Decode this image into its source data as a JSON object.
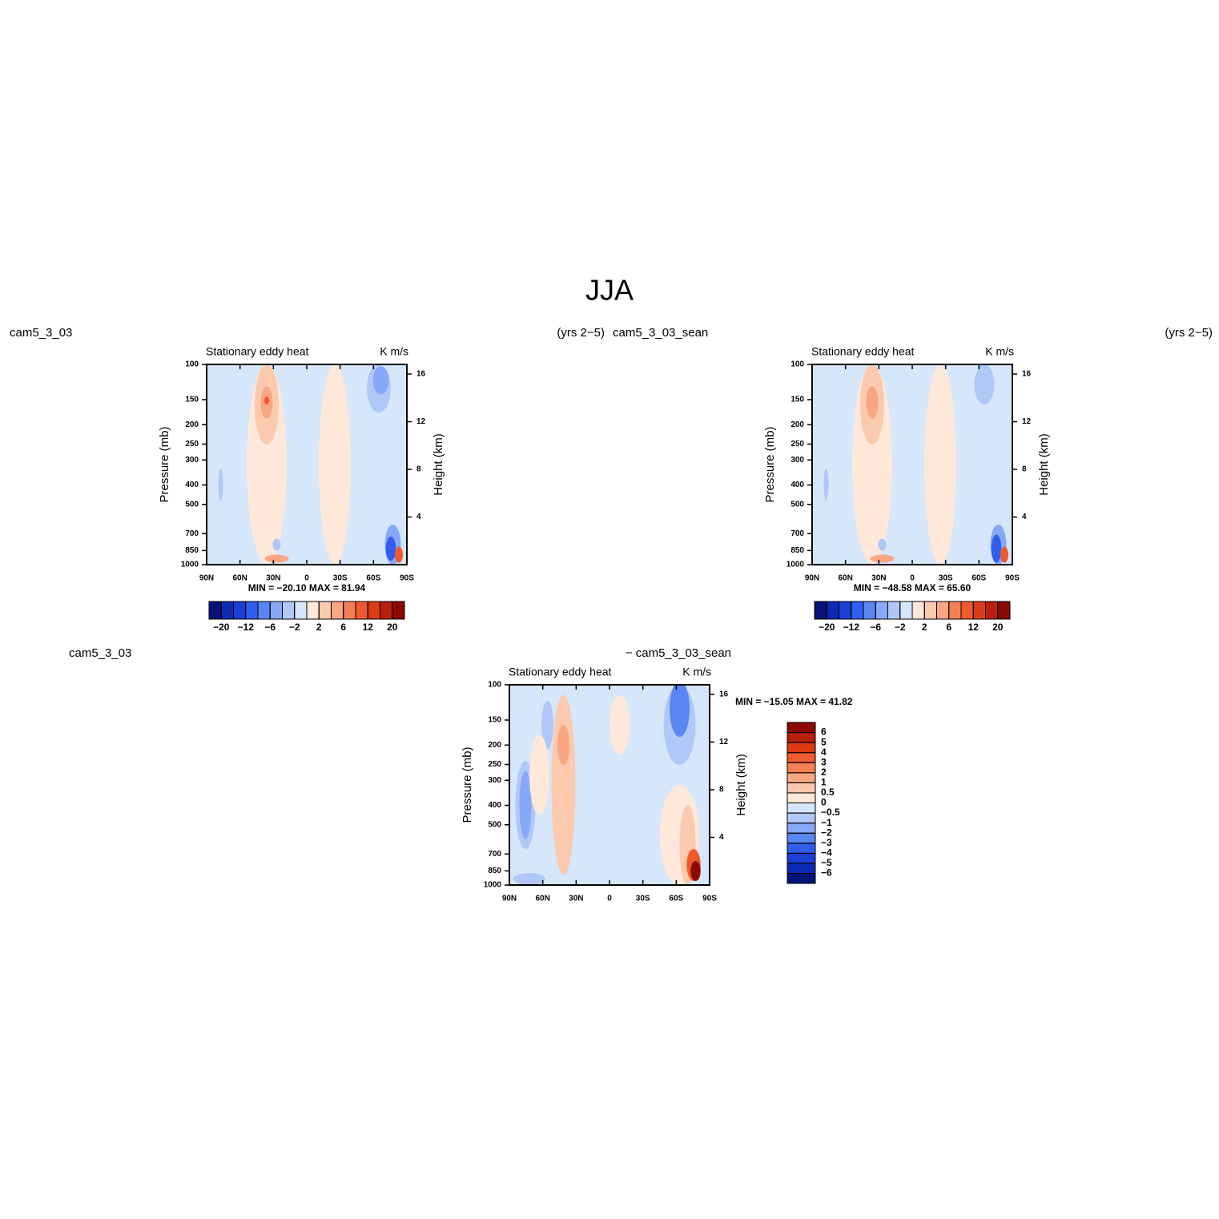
{
  "figure_title": "JJA",
  "chart_data": [
    {
      "type": "contour",
      "left_title": "cam5_3_03",
      "right_title": "(yrs 2−5)",
      "subtitle_left": "Stationary eddy heat",
      "subtitle_right": "K m/s",
      "ylabel": "Pressure (mb)",
      "y2label": "Height (km)",
      "xlim": [
        90,
        -90
      ],
      "xticks": [
        {
          "value": 90,
          "label": "90N"
        },
        {
          "value": 60,
          "label": "60N"
        },
        {
          "value": 30,
          "label": "30N"
        },
        0,
        {
          "value": -30,
          "label": "30S"
        },
        {
          "value": -60,
          "label": "60S"
        },
        {
          "value": -90,
          "label": "90S"
        }
      ],
      "ylim": [
        1000,
        100
      ],
      "log_y": true,
      "yticks": [
        100,
        150,
        200,
        250,
        300,
        400,
        500,
        700,
        850,
        1000
      ],
      "y2ticks": [
        4,
        8,
        12,
        16
      ],
      "stats": "MIN = −20.10   MAX =  81.94",
      "colorbar_orientation": "horizontal",
      "colorbar_colors": [
        "#06127a",
        "#0c2ab3",
        "#1a3ed6",
        "#2f5ef0",
        "#5a86f4",
        "#86a8f6",
        "#b0c8f8",
        "#d6e6fb",
        "#fde8da",
        "#fbc9ae",
        "#f9a683",
        "#f57f55",
        "#ef5a2e",
        "#dc3a14",
        "#b8200c",
        "#8c0a04"
      ],
      "colorbar_ticks": [
        {
          "value": -20,
          "label": "−20"
        },
        {
          "value": -12,
          "label": "−12"
        },
        {
          "value": -6,
          "label": "−6"
        },
        {
          "value": -2,
          "label": "−2"
        },
        2,
        6,
        12,
        20
      ]
    },
    {
      "type": "contour",
      "left_title": "cam5_3_03_sean",
      "right_title": "(yrs 2−5)",
      "subtitle_left": "Stationary eddy heat",
      "subtitle_right": "K m/s",
      "ylabel": "Pressure (mb)",
      "y2label": "Height (km)",
      "xlim": [
        90,
        -90
      ],
      "xticks": [
        {
          "value": 90,
          "label": "90N"
        },
        {
          "value": 60,
          "label": "60N"
        },
        {
          "value": 30,
          "label": "30N"
        },
        0,
        {
          "value": -30,
          "label": "30S"
        },
        {
          "value": -60,
          "label": "60S"
        },
        {
          "value": -90,
          "label": "90S"
        }
      ],
      "ylim": [
        1000,
        100
      ],
      "log_y": true,
      "yticks": [
        100,
        150,
        200,
        250,
        300,
        400,
        500,
        700,
        850,
        1000
      ],
      "y2ticks": [
        4,
        8,
        12,
        16
      ],
      "stats": "MIN = −48.58   MAX =  65.60",
      "colorbar_orientation": "horizontal",
      "colorbar_colors": [
        "#06127a",
        "#0c2ab3",
        "#1a3ed6",
        "#2f5ef0",
        "#5a86f4",
        "#86a8f6",
        "#b0c8f8",
        "#d6e6fb",
        "#fde8da",
        "#fbc9ae",
        "#f9a683",
        "#f57f55",
        "#ef5a2e",
        "#dc3a14",
        "#b8200c",
        "#8c0a04"
      ],
      "colorbar_ticks": [
        {
          "value": -20,
          "label": "−20"
        },
        {
          "value": -12,
          "label": "−12"
        },
        {
          "value": -6,
          "label": "−6"
        },
        {
          "value": -2,
          "label": "−2"
        },
        2,
        6,
        12,
        20
      ]
    },
    {
      "type": "contour",
      "left_title": "cam5_3_03",
      "right_title": "− cam5_3_03_sean",
      "subtitle_left": "Stationary eddy heat",
      "subtitle_right": "K m/s",
      "ylabel": "Pressure (mb)",
      "y2label": "Height (km)",
      "xlim": [
        90,
        -90
      ],
      "xticks": [
        {
          "value": 90,
          "label": "90N"
        },
        {
          "value": 60,
          "label": "60N"
        },
        {
          "value": 30,
          "label": "30N"
        },
        0,
        {
          "value": -30,
          "label": "30S"
        },
        {
          "value": -60,
          "label": "60S"
        },
        {
          "value": -90,
          "label": "90S"
        }
      ],
      "ylim": [
        1000,
        100
      ],
      "log_y": true,
      "yticks": [
        100,
        150,
        200,
        250,
        300,
        400,
        500,
        700,
        850,
        1000
      ],
      "y2ticks": [
        4,
        8,
        12,
        16
      ],
      "stats": "MIN = −15.05   MAX =   41.82",
      "colorbar_orientation": "vertical",
      "colorbar_colors": [
        "#06127a",
        "#0c2ab3",
        "#1a3ed6",
        "#2f5ef0",
        "#5a86f4",
        "#86a8f6",
        "#b0c8f8",
        "#d6e6fb",
        "#fde8da",
        "#fbc9ae",
        "#f9a683",
        "#f57f55",
        "#ef5a2e",
        "#dc3a14",
        "#b8200c",
        "#8c0a04"
      ],
      "colorbar_ticks": [
        {
          "value": -6,
          "label": "−6"
        },
        {
          "value": -5,
          "label": "−5"
        },
        {
          "value": -4,
          "label": "−4"
        },
        {
          "value": -3,
          "label": "−3"
        },
        {
          "value": -2,
          "label": "−2"
        },
        {
          "value": -1,
          "label": "−1"
        },
        {
          "value": -0.5,
          "label": "−0.5"
        },
        0,
        0.5,
        1,
        2,
        3,
        4,
        5,
        6
      ]
    }
  ]
}
